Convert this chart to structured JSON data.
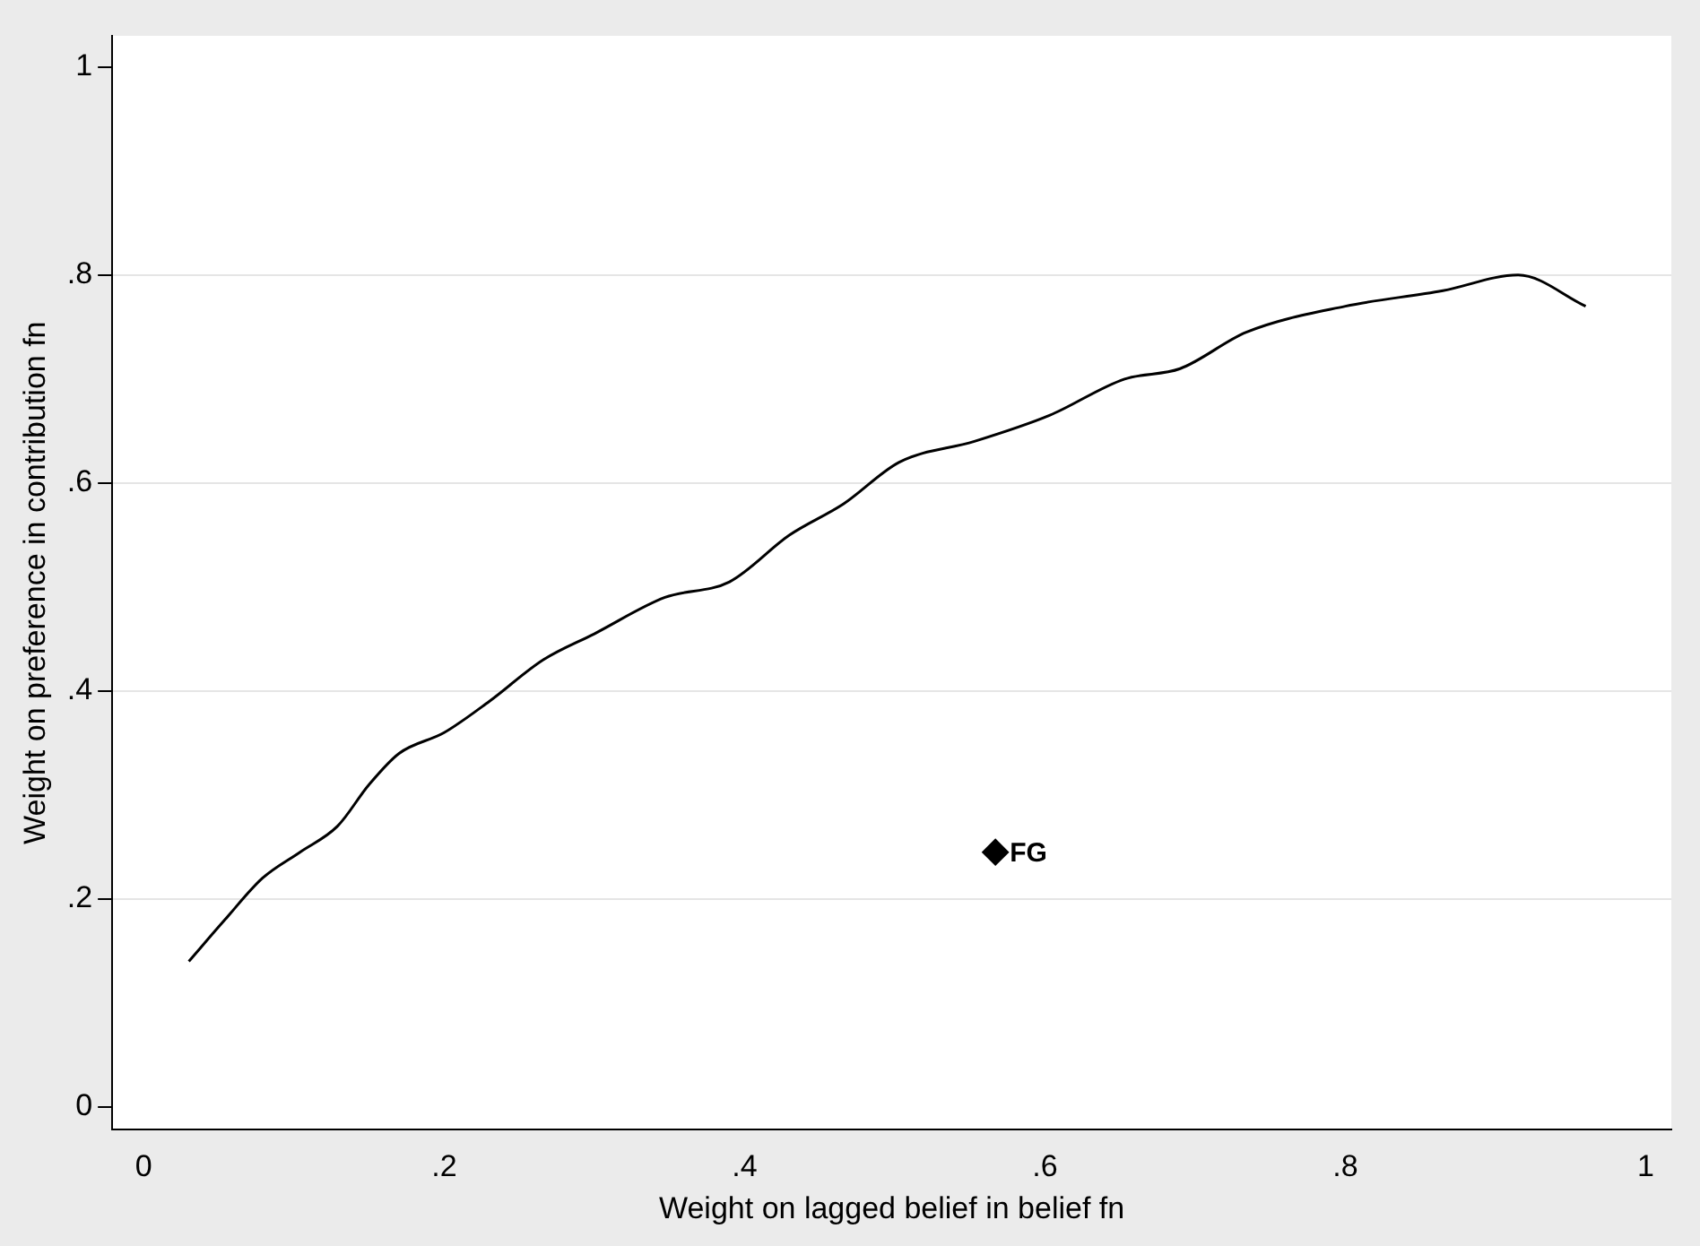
{
  "chart_data": {
    "type": "line",
    "xlabel": "Weight on lagged belief in belief fn",
    "ylabel": "Weight on preference in contribution fn",
    "xlim": [
      -0.021,
      1.017
    ],
    "ylim": [
      -0.022,
      1.03
    ],
    "xticks": [
      0,
      {
        "value": 0.2,
        "label": ".2"
      },
      {
        "value": 0.4,
        "label": ".4"
      },
      {
        "value": 0.6,
        "label": ".6"
      },
      {
        "value": 0.8,
        "label": ".8"
      },
      1
    ],
    "yticks": [
      0,
      {
        "value": 0.2,
        "label": ".2"
      },
      {
        "value": 0.4,
        "label": ".4"
      },
      {
        "value": 0.6,
        "label": ".6"
      },
      {
        "value": 0.8,
        "label": ".8"
      },
      1
    ],
    "grid": "y",
    "legend": false,
    "series": [
      {
        "color": "#000000",
        "marker": "none",
        "line_style": "solid",
        "x": [
          0.03,
          0.054,
          0.079,
          0.104,
          0.129,
          0.15,
          0.17,
          0.2,
          0.23,
          0.266,
          0.3,
          0.347,
          0.39,
          0.43,
          0.466,
          0.503,
          0.553,
          0.603,
          0.653,
          0.69,
          0.734,
          0.8,
          0.865,
          0.915,
          0.96
        ],
        "values": [
          0.14,
          0.18,
          0.22,
          0.245,
          0.27,
          0.31,
          0.34,
          0.36,
          0.39,
          0.43,
          0.455,
          0.49,
          0.505,
          0.55,
          0.58,
          0.62,
          0.64,
          0.665,
          0.7,
          0.71,
          0.745,
          0.77,
          0.785,
          0.8,
          0.77
        ]
      },
      {
        "type": "scatter",
        "name": "FG",
        "color": "#000000",
        "marker": "diamond",
        "x": [
          0.567
        ],
        "values": [
          0.245
        ]
      }
    ]
  }
}
